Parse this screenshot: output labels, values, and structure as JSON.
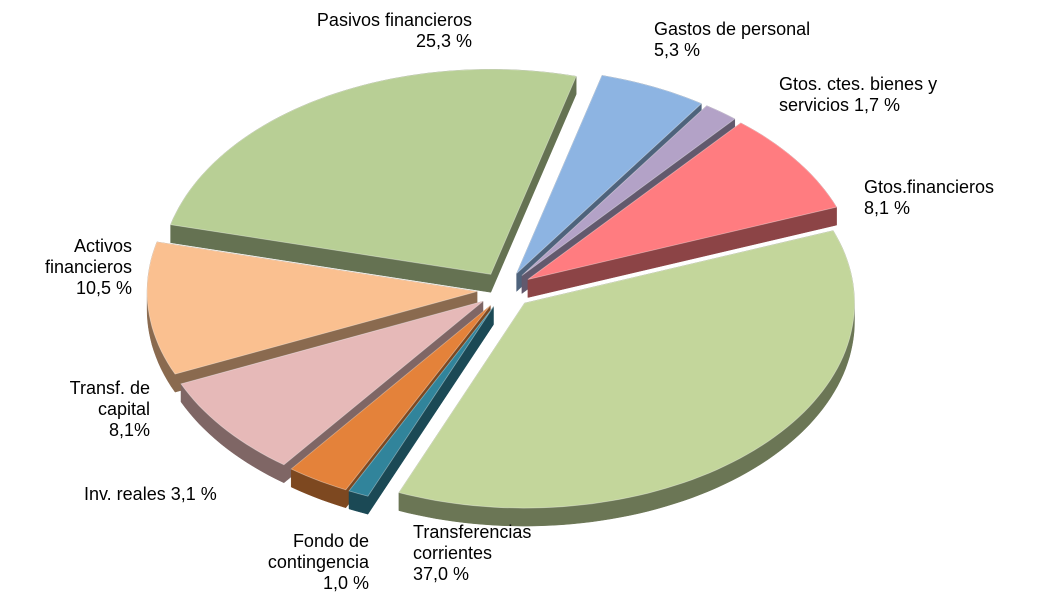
{
  "chart_data": {
    "type": "pie",
    "categories": [
      "Pasivos financieros",
      "Gastos de personal",
      "Gtos. ctes. bienes y servicios",
      "Gtos.financieros",
      "Transferencias corrientes",
      "Fondo de contingencia",
      "Inv. reales",
      "Transf. de capital",
      "Activos financieros"
    ],
    "values": [
      25.3,
      5.3,
      1.7,
      8.1,
      37.0,
      1.0,
      3.1,
      8.1,
      10.5
    ],
    "value_labels": [
      "25,3 %",
      "5,3 %",
      "1,7 %",
      "8,1 %",
      "37,0 %",
      "1,0 %",
      "3,1 %",
      "8,1%",
      "10,5 %"
    ],
    "colors": [
      "#b8cf95",
      "#8db4e2",
      "#b3a2c7",
      "#ff7c80",
      "#c3d69b",
      "#31849b",
      "#e4823a",
      "#e6b9b8",
      "#fac090"
    ]
  }
}
